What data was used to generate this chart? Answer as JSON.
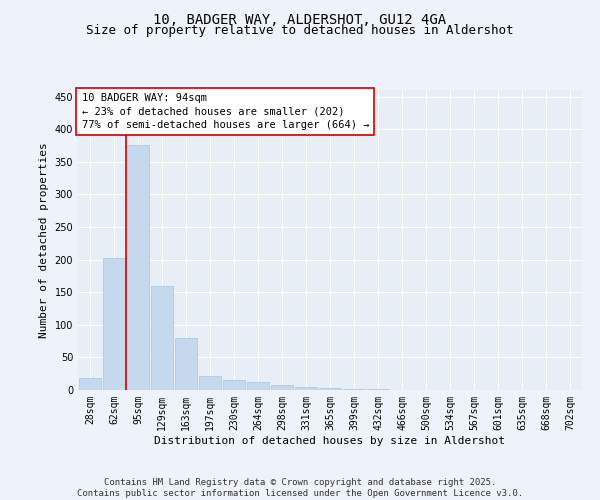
{
  "title_line1": "10, BADGER WAY, ALDERSHOT, GU12 4GA",
  "title_line2": "Size of property relative to detached houses in Aldershot",
  "xlabel": "Distribution of detached houses by size in Aldershot",
  "ylabel": "Number of detached properties",
  "bar_labels": [
    "28sqm",
    "62sqm",
    "95sqm",
    "129sqm",
    "163sqm",
    "197sqm",
    "230sqm",
    "264sqm",
    "298sqm",
    "331sqm",
    "365sqm",
    "399sqm",
    "432sqm",
    "466sqm",
    "500sqm",
    "534sqm",
    "567sqm",
    "601sqm",
    "635sqm",
    "668sqm",
    "702sqm"
  ],
  "bar_values": [
    18,
    202,
    375,
    160,
    80,
    22,
    15,
    13,
    7,
    5,
    3,
    2,
    1,
    0,
    0,
    0,
    0,
    0,
    0,
    0,
    0
  ],
  "bar_color": "#c5d8ed",
  "bar_edge_color": "#aac4df",
  "vline_color": "#cc0000",
  "annotation_text": "10 BADGER WAY: 94sqm\n← 23% of detached houses are smaller (202)\n77% of semi-detached houses are larger (664) →",
  "annotation_box_color": "#ffffff",
  "annotation_border_color": "#cc0000",
  "ylim": [
    0,
    460
  ],
  "yticks": [
    0,
    50,
    100,
    150,
    200,
    250,
    300,
    350,
    400,
    450
  ],
  "bg_color": "#eef2f9",
  "plot_bg_color": "#e8eef6",
  "footer_text": "Contains HM Land Registry data © Crown copyright and database right 2025.\nContains public sector information licensed under the Open Government Licence v3.0.",
  "title_fontsize": 10,
  "subtitle_fontsize": 9,
  "axis_label_fontsize": 8,
  "tick_fontsize": 7,
  "annotation_fontsize": 7.5,
  "footer_fontsize": 6.5
}
